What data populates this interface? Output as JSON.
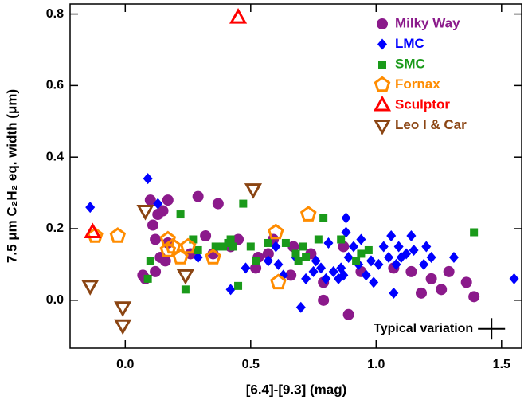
{
  "chart_data": {
    "type": "scatter",
    "x_label": "[6.4]-[9.3] (mag)",
    "y_label": "7.5 μm C₂H₂ eq. width (μm)",
    "xlim": [
      -0.22,
      1.58
    ],
    "ylim": [
      -0.134,
      0.828
    ],
    "xticks": [
      {
        "value": 0,
        "label": "0.0"
      },
      {
        "value": 0.5,
        "label": "0.5"
      },
      {
        "value": 1,
        "label": "1.0"
      },
      {
        "value": 1.5,
        "label": "1.5"
      }
    ],
    "yticks": [
      {
        "value": 0,
        "label": "0.0"
      },
      {
        "value": 0.2,
        "label": "0.2"
      },
      {
        "value": 0.4,
        "label": "0.4"
      },
      {
        "value": 0.6,
        "label": "0.6"
      },
      {
        "value": 0.8,
        "label": "0.8"
      }
    ],
    "legend": "upper right",
    "series": [
      {
        "name": "Milky Way",
        "color": "#8b1a8b",
        "marker": "circle",
        "filled": true,
        "x": [
          0.1,
          0.13,
          0.15,
          0.17,
          0.29,
          0.37,
          0.11,
          0.12,
          0.14,
          0.12,
          0.16,
          0.17,
          0.07,
          0.08,
          0.26,
          0.32,
          0.35,
          0.42,
          0.45,
          0.52,
          0.53,
          0.57,
          0.59,
          0.67,
          0.66,
          0.74,
          0.79,
          0.87,
          0.89,
          0.79,
          0.94,
          1.07,
          1.14,
          1.18,
          1.22,
          1.26,
          1.29,
          1.36,
          1.39
        ],
        "values": [
          0.28,
          0.24,
          0.25,
          0.28,
          0.29,
          0.27,
          0.21,
          0.17,
          0.12,
          0.08,
          0.11,
          0.16,
          0.07,
          0.06,
          0.13,
          0.18,
          0.13,
          0.15,
          0.17,
          0.09,
          0.12,
          0.13,
          0.17,
          0.15,
          0.07,
          0.13,
          0.05,
          0.15,
          -0.04,
          0.0,
          0.08,
          0.09,
          0.08,
          0.02,
          0.06,
          0.03,
          0.08,
          0.05,
          0.01
        ]
      },
      {
        "name": "LMC",
        "color": "#0000ff",
        "marker": "diamond",
        "filled": true,
        "x": [
          -0.14,
          0.09,
          0.13,
          0.29,
          0.42,
          0.48,
          0.57,
          0.6,
          0.61,
          0.63,
          0.68,
          0.7,
          0.72,
          0.75,
          0.76,
          0.78,
          0.8,
          0.81,
          0.83,
          0.85,
          0.86,
          0.87,
          0.88,
          0.88,
          0.89,
          0.91,
          0.93,
          0.94,
          0.96,
          0.98,
          0.99,
          1.01,
          1.03,
          1.05,
          1.06,
          1.08,
          1.09,
          1.1,
          1.12,
          1.14,
          1.15,
          1.07,
          1.2,
          1.19,
          1.22,
          1.55,
          1.31
        ],
        "values": [
          0.26,
          0.34,
          0.27,
          0.12,
          0.03,
          0.09,
          0.11,
          0.15,
          0.1,
          0.07,
          0.12,
          -0.02,
          0.06,
          0.08,
          0.11,
          0.09,
          0.06,
          0.16,
          0.08,
          0.06,
          0.09,
          0.07,
          0.23,
          0.19,
          0.12,
          0.15,
          0.1,
          0.17,
          0.07,
          0.11,
          0.05,
          0.1,
          0.15,
          0.12,
          0.18,
          0.1,
          0.15,
          0.12,
          0.13,
          0.18,
          0.14,
          0.02,
          0.15,
          0.1,
          0.12,
          0.06,
          0.12
        ]
      },
      {
        "name": "SMC",
        "color": "#1a9a1a",
        "marker": "square",
        "filled": true,
        "x": [
          0.1,
          0.09,
          0.22,
          0.24,
          0.27,
          0.29,
          0.36,
          0.39,
          0.41,
          0.42,
          0.43,
          0.45,
          0.47,
          0.5,
          0.52,
          0.57,
          0.64,
          0.68,
          0.69,
          0.71,
          0.72,
          0.77,
          0.79,
          0.86,
          0.92,
          0.94,
          0.97,
          1.39
        ],
        "values": [
          0.11,
          0.06,
          0.24,
          0.03,
          0.17,
          0.14,
          0.15,
          0.15,
          0.16,
          0.17,
          0.15,
          0.04,
          0.27,
          0.15,
          0.11,
          0.16,
          0.16,
          0.13,
          0.11,
          0.15,
          0.12,
          0.17,
          0.23,
          0.17,
          0.11,
          0.13,
          0.14,
          0.19
        ]
      },
      {
        "name": "Fornax",
        "color": "#ff8c00",
        "marker": "pentagon",
        "filled": false,
        "x": [
          -0.12,
          -0.03,
          0.17,
          0.17,
          0.19,
          0.22,
          0.25,
          0.35,
          0.6,
          0.73,
          0.61
        ],
        "values": [
          0.18,
          0.18,
          0.17,
          0.14,
          0.15,
          0.12,
          0.15,
          0.12,
          0.19,
          0.24,
          0.05
        ]
      },
      {
        "name": "Sculptor",
        "color": "#ff0000",
        "marker": "triangle",
        "filled": false,
        "x": [
          0.45,
          -0.13
        ],
        "values": [
          0.79,
          0.19
        ]
      },
      {
        "name": "Leo I & Car",
        "color": "#8b4513",
        "marker": "triangle-down",
        "filled": false,
        "x": [
          -0.14,
          0.08,
          0.51,
          0.24,
          -0.01,
          -0.01
        ],
        "values": [
          0.04,
          0.25,
          0.31,
          0.07,
          -0.02,
          -0.07
        ]
      }
    ],
    "annotations": [
      {
        "text": "Typical variation",
        "x": 1.46,
        "y": -0.08,
        "xerr": 0.054,
        "yerr": 0.03
      }
    ]
  }
}
